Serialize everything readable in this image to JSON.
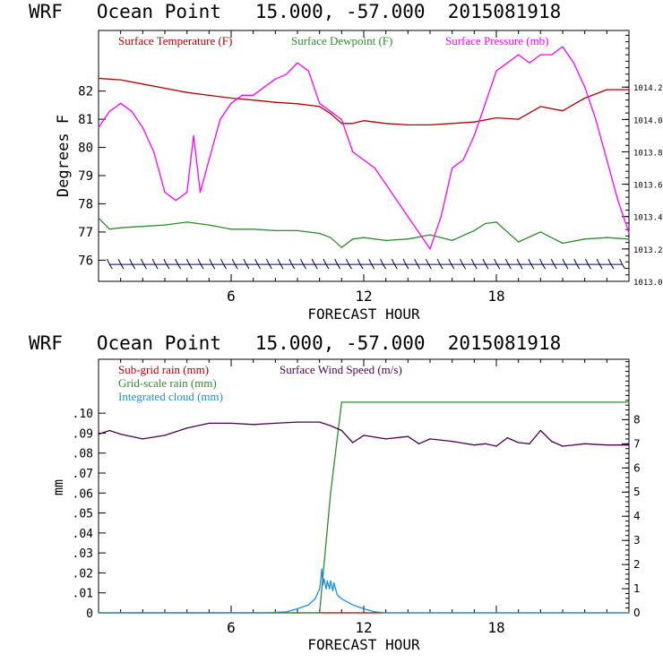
{
  "chart_data": [
    {
      "type": "line",
      "title": "WRF   Ocean Point   15.000, -57.000  2015081918",
      "xlabel": "FORECAST HOUR",
      "ylabel": "Degrees F",
      "xlim": [
        0,
        24
      ],
      "ylim": [
        75.25,
        84.15
      ],
      "xticks": [
        6,
        12,
        18
      ],
      "xtick_labels": [
        "6",
        "12",
        "18"
      ],
      "yticks": [
        76,
        77,
        78,
        79,
        80,
        81,
        82
      ],
      "ytick_labels": [
        "76",
        "77",
        "78",
        "79",
        "80",
        "81",
        "82"
      ],
      "y2label": "",
      "y2lim": [
        1013.0,
        1014.55
      ],
      "y2ticks": [
        1013.0,
        1013.2,
        1013.4,
        1013.6,
        1013.8,
        1014.0,
        1014.2
      ],
      "y2tick_labels": [
        "1013.0",
        "1013.2",
        "1013.4",
        "1013.6",
        "1013.8",
        "1014.0",
        "1014.2"
      ],
      "legend": [
        "Surface Temperature (F)",
        "Surface Dewpoint (F)",
        "Surface Pressure (mb)"
      ],
      "series": [
        {
          "name": "Surface Temperature (F)",
          "axis": "left",
          "color": "#b00000",
          "x": [
            0,
            1,
            2,
            3,
            4,
            5,
            6,
            7,
            8,
            9,
            10,
            10.5,
            11,
            11.5,
            12,
            13,
            14,
            15,
            16,
            17,
            18,
            19,
            20,
            21,
            22,
            23,
            24
          ],
          "values": [
            82.45,
            82.4,
            82.25,
            82.1,
            81.95,
            81.85,
            81.75,
            81.68,
            81.6,
            81.55,
            81.45,
            81.2,
            80.85,
            80.85,
            80.95,
            80.85,
            80.8,
            80.8,
            80.85,
            80.9,
            81.05,
            81.0,
            81.45,
            81.3,
            81.75,
            82.05,
            82.05
          ]
        },
        {
          "name": "Surface Dewpoint (F)",
          "axis": "left",
          "color": "#2e8b2e",
          "x": [
            0,
            0.5,
            1,
            2,
            3,
            4,
            5,
            6,
            7,
            8,
            9,
            10,
            10.5,
            11,
            11.5,
            12,
            13,
            14,
            15,
            16,
            17,
            17.5,
            18,
            19,
            20,
            21,
            22,
            23,
            24
          ],
          "values": [
            77.5,
            77.1,
            77.15,
            77.2,
            77.25,
            77.35,
            77.25,
            77.1,
            77.1,
            77.05,
            77.05,
            76.95,
            76.8,
            76.45,
            76.75,
            76.8,
            76.7,
            76.75,
            76.9,
            76.7,
            77.05,
            77.3,
            77.35,
            76.65,
            77.0,
            76.6,
            76.75,
            76.8,
            76.75
          ]
        },
        {
          "name": "Surface Pressure (mb)",
          "axis": "right",
          "color": "#ff00ff",
          "x": [
            0,
            0.5,
            1,
            1.5,
            2,
            2.5,
            3,
            3.5,
            4,
            4.3,
            4.6,
            5,
            5.5,
            6,
            6.5,
            7,
            7.5,
            8,
            8.5,
            9,
            9.5,
            10,
            10.5,
            11,
            11.5,
            12,
            12.5,
            13,
            13.5,
            14,
            14.5,
            15,
            15.5,
            16,
            16.5,
            17,
            17.5,
            18,
            18.5,
            19,
            19.5,
            20,
            20.5,
            21,
            21.5,
            22,
            22.5,
            23,
            23.5,
            24
          ],
          "values": [
            1013.95,
            1014.05,
            1014.1,
            1014.05,
            1013.95,
            1013.8,
            1013.55,
            1013.5,
            1013.55,
            1013.9,
            1013.55,
            1013.75,
            1014.0,
            1014.1,
            1014.15,
            1014.15,
            1014.2,
            1014.25,
            1014.28,
            1014.35,
            1014.3,
            1014.1,
            1014.05,
            1014.0,
            1013.8,
            1013.75,
            1013.7,
            1013.6,
            1013.5,
            1013.4,
            1013.3,
            1013.2,
            1013.4,
            1013.7,
            1013.75,
            1013.9,
            1014.1,
            1014.3,
            1014.35,
            1014.4,
            1014.35,
            1014.4,
            1014.4,
            1014.45,
            1014.35,
            1014.2,
            1014.0,
            1013.75,
            1013.5,
            1013.3
          ]
        },
        {
          "name": "Wind barbs",
          "axis": "left",
          "color": "#000080",
          "y": 75.85,
          "x_start": 0.5,
          "x_end": 23.7,
          "count": 46
        }
      ]
    },
    {
      "type": "line",
      "title": "WRF   Ocean Point   15.000, -57.000  2015081918",
      "xlabel": "FORECAST HOUR",
      "ylabel": "mm",
      "xlim": [
        0,
        24
      ],
      "ylim": [
        0,
        0.127
      ],
      "xticks": [
        6,
        12,
        18
      ],
      "xtick_labels": [
        "6",
        "12",
        "18"
      ],
      "yticks": [
        0,
        0.01,
        0.02,
        0.03,
        0.04,
        0.05,
        0.06,
        0.07,
        0.08,
        0.09,
        0.1
      ],
      "ytick_labels": [
        "0",
        ".01",
        ".02",
        ".03",
        ".04",
        ".05",
        ".06",
        ".07",
        ".08",
        ".09",
        ".10"
      ],
      "y2lim": [
        0,
        10.5
      ],
      "y2ticks": [
        0,
        1,
        2,
        3,
        4,
        5,
        6,
        7,
        8
      ],
      "y2tick_labels": [
        "0",
        "1",
        "2",
        "3",
        "4",
        "5",
        "6",
        "7",
        "8"
      ],
      "legend": [
        "Sub-grid rain (mm)",
        "Grid-scale rain (mm)",
        "Integrated cloud (mm)",
        "Surface Wind Speed (m/s)"
      ],
      "series": [
        {
          "name": "Sub-grid rain (mm)",
          "axis": "left",
          "color": "#b00000",
          "x": [
            0,
            24
          ],
          "values": [
            0,
            0
          ]
        },
        {
          "name": "Grid-scale rain (mm)",
          "axis": "left",
          "color": "#2e8b2e",
          "x": [
            0,
            10,
            10.5,
            11,
            24
          ],
          "values": [
            0,
            0,
            0.06,
            0.1055,
            0.1055
          ]
        },
        {
          "name": "Integrated cloud (mm)",
          "axis": "left",
          "color": "#1f8fd6",
          "x": [
            0,
            7.5,
            8.5,
            9,
            9.5,
            9.8,
            10,
            10.05,
            10.1,
            10.15,
            10.2,
            10.3,
            10.35,
            10.45,
            10.5,
            10.6,
            10.65,
            10.8,
            11,
            11.5,
            12,
            12.5,
            13,
            24
          ],
          "values": [
            0,
            0,
            0.0005,
            0.002,
            0.004,
            0.007,
            0.012,
            0.016,
            0.022,
            0.014,
            0.017,
            0.012,
            0.016,
            0.012,
            0.016,
            0.011,
            0.015,
            0.009,
            0.007,
            0.004,
            0.002,
            0.0005,
            0,
            0
          ]
        },
        {
          "name": "Surface Wind Speed (m/s)",
          "axis": "right",
          "color": "#4b0050",
          "x": [
            0,
            0.5,
            1,
            2,
            3,
            4,
            5,
            6,
            7,
            8,
            9,
            10,
            10.5,
            11,
            11.5,
            12,
            13,
            14,
            14.5,
            15,
            16,
            17,
            17.5,
            18,
            18.5,
            19,
            19.5,
            20,
            20.5,
            21,
            22,
            23,
            24
          ],
          "values": [
            7.4,
            7.55,
            7.4,
            7.2,
            7.35,
            7.65,
            7.85,
            7.85,
            7.8,
            7.85,
            7.9,
            7.9,
            7.75,
            7.55,
            7.05,
            7.35,
            7.2,
            7.3,
            7.0,
            7.2,
            7.1,
            6.95,
            7.0,
            6.9,
            7.25,
            7.05,
            7.0,
            7.55,
            7.1,
            6.9,
            7.0,
            6.95,
            6.95
          ]
        }
      ]
    }
  ]
}
